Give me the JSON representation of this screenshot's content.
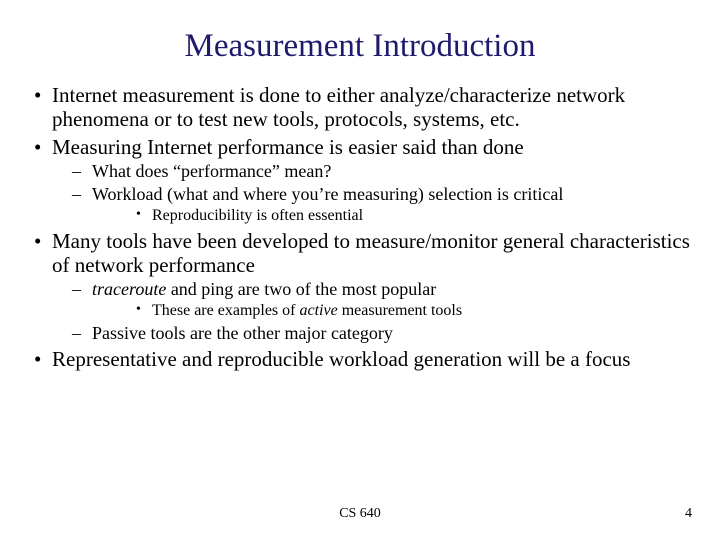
{
  "title": "Measurement Introduction",
  "title_color": "#1f1a6b",
  "background_color": "#ffffff",
  "text_color": "#000000",
  "font_family": "Times New Roman",
  "bullets": {
    "b1": "Internet measurement is done to either analyze/characterize network phenomena or to test new tools, protocols, systems, etc.",
    "b2": "Measuring Internet performance is easier said than done",
    "b2_1": "What does “performance” mean?",
    "b2_2": "Workload (what and where you’re measuring) selection is critical",
    "b2_2_1": "Reproducibility is often essential",
    "b3": "Many tools have been developed to measure/monitor general characteristics of network performance",
    "b3_1_pre": "traceroute",
    "b3_1_mid": " and ping are two of the most popular",
    "b3_1_1_pre": "These are examples of ",
    "b3_1_1_em": "active",
    "b3_1_1_post": " measurement tools",
    "b3_2": "Passive tools are the other major category",
    "b4": "Representative and reproducible workload generation will be a focus"
  },
  "footer": {
    "course": "CS 640",
    "page": "4"
  }
}
